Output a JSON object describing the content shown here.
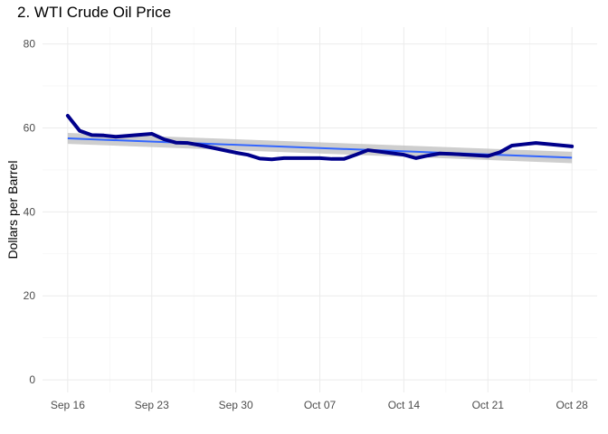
{
  "chart_data": {
    "type": "line",
    "title": "2. WTI Crude Oil Price",
    "xlabel": "",
    "ylabel": "Dollars per Barrel",
    "x_start_date": "2019-09-16",
    "ylim": [
      -3,
      84
    ],
    "y_ticks": [
      0,
      20,
      40,
      60,
      80
    ],
    "x_ticks": [
      {
        "date": "2019-09-16",
        "label": "Sep 16"
      },
      {
        "date": "2019-09-23",
        "label": "Sep 23"
      },
      {
        "date": "2019-09-30",
        "label": "Sep 30"
      },
      {
        "date": "2019-10-07",
        "label": "Oct 07"
      },
      {
        "date": "2019-10-14",
        "label": "Oct 14"
      },
      {
        "date": "2019-10-21",
        "label": "Oct 21"
      },
      {
        "date": "2019-10-28",
        "label": "Oct 28"
      }
    ],
    "grid": true,
    "series": [
      {
        "name": "",
        "kind": "price",
        "color": "#00008b",
        "points": [
          {
            "date": "2019-09-16",
            "value": 62.9
          },
          {
            "date": "2019-09-17",
            "value": 59.3
          },
          {
            "date": "2019-09-18",
            "value": 58.3
          },
          {
            "date": "2019-09-19",
            "value": 58.2
          },
          {
            "date": "2019-09-20",
            "value": 57.9
          },
          {
            "date": "2019-09-23",
            "value": 58.6
          },
          {
            "date": "2019-09-24",
            "value": 57.3
          },
          {
            "date": "2019-09-25",
            "value": 56.5
          },
          {
            "date": "2019-09-26",
            "value": 56.4
          },
          {
            "date": "2019-09-27",
            "value": 55.9
          },
          {
            "date": "2019-09-30",
            "value": 54.1
          },
          {
            "date": "2019-10-01",
            "value": 53.6
          },
          {
            "date": "2019-10-02",
            "value": 52.7
          },
          {
            "date": "2019-10-03",
            "value": 52.5
          },
          {
            "date": "2019-10-04",
            "value": 52.8
          },
          {
            "date": "2019-10-07",
            "value": 52.8
          },
          {
            "date": "2019-10-08",
            "value": 52.6
          },
          {
            "date": "2019-10-09",
            "value": 52.6
          },
          {
            "date": "2019-10-10",
            "value": 53.6
          },
          {
            "date": "2019-10-11",
            "value": 54.7
          },
          {
            "date": "2019-10-14",
            "value": 53.6
          },
          {
            "date": "2019-10-15",
            "value": 52.8
          },
          {
            "date": "2019-10-16",
            "value": 53.4
          },
          {
            "date": "2019-10-17",
            "value": 53.9
          },
          {
            "date": "2019-10-18",
            "value": 53.8
          },
          {
            "date": "2019-10-21",
            "value": 53.3
          },
          {
            "date": "2019-10-22",
            "value": 54.2
          },
          {
            "date": "2019-10-23",
            "value": 55.8
          },
          {
            "date": "2019-10-24",
            "value": 56.1
          },
          {
            "date": "2019-10-25",
            "value": 56.4
          },
          {
            "date": "2019-10-28",
            "value": 55.6
          }
        ]
      },
      {
        "name": "",
        "kind": "trend",
        "color": "#3366ff",
        "band_color": "#bdbdbd",
        "start": {
          "date": "2019-09-16",
          "value": 57.5,
          "band_low": 56.2,
          "band_high": 58.8
        },
        "end": {
          "date": "2019-10-28",
          "value": 52.9,
          "band_low": 51.6,
          "band_high": 54.3
        }
      }
    ]
  },
  "colors": {
    "grid_major": "#ebebeb",
    "grid_minor": "#f5f5f5",
    "tick_text": "#4d4d4d"
  }
}
